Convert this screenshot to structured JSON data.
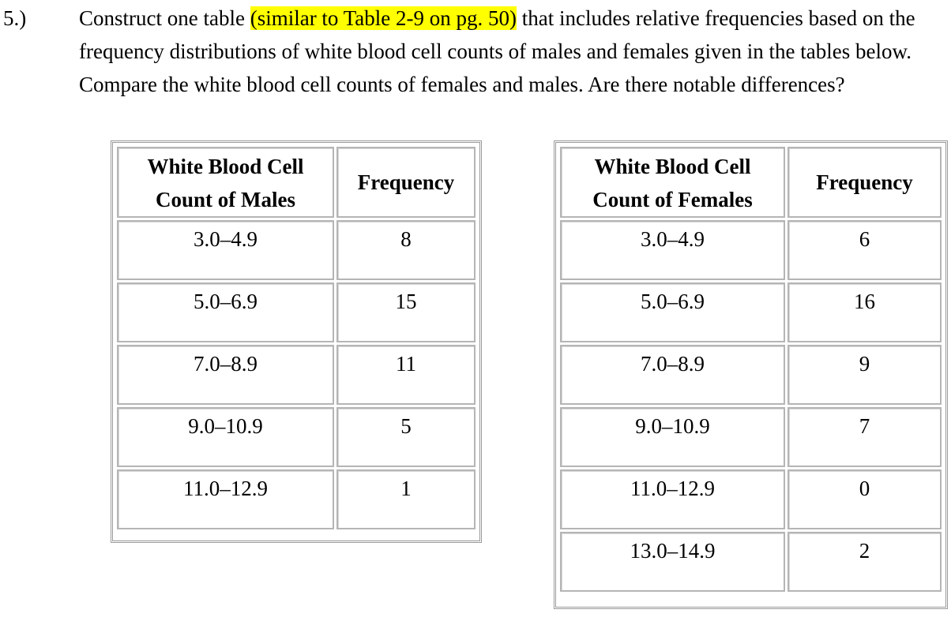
{
  "question": {
    "number": "5.)",
    "text_before": "Construct one table ",
    "highlighted": "(similar to Table 2-9 on pg. 50)",
    "text_after": " that includes relative frequencies based on the frequency distributions of white blood cell counts of males and females given in the tables below.  Compare the white blood cell counts of females and males. Are there notable differences?",
    "highlight_color": "#ffff00"
  },
  "males_table": {
    "headers": {
      "col1_line1": "White Blood Cell",
      "col1_line2": "Count of Males",
      "col2": "Frequency"
    },
    "rows": [
      {
        "range": "3.0–4.9",
        "frequency": "8"
      },
      {
        "range": "5.0–6.9",
        "frequency": "15"
      },
      {
        "range": "7.0–8.9",
        "frequency": "11"
      },
      {
        "range": "9.0–10.9",
        "frequency": "5"
      },
      {
        "range": "11.0–12.9",
        "frequency": "1"
      }
    ]
  },
  "females_table": {
    "headers": {
      "col1_line1": "White Blood Cell",
      "col1_line2": "Count of Females",
      "col2": "Frequency"
    },
    "rows": [
      {
        "range": "3.0–4.9",
        "frequency": "6"
      },
      {
        "range": "5.0–6.9",
        "frequency": "16"
      },
      {
        "range": "7.0–8.9",
        "frequency": "9"
      },
      {
        "range": "9.0–10.9",
        "frequency": "7"
      },
      {
        "range": "11.0–12.9",
        "frequency": "0"
      },
      {
        "range": "13.0–14.9",
        "frequency": "2"
      }
    ]
  }
}
